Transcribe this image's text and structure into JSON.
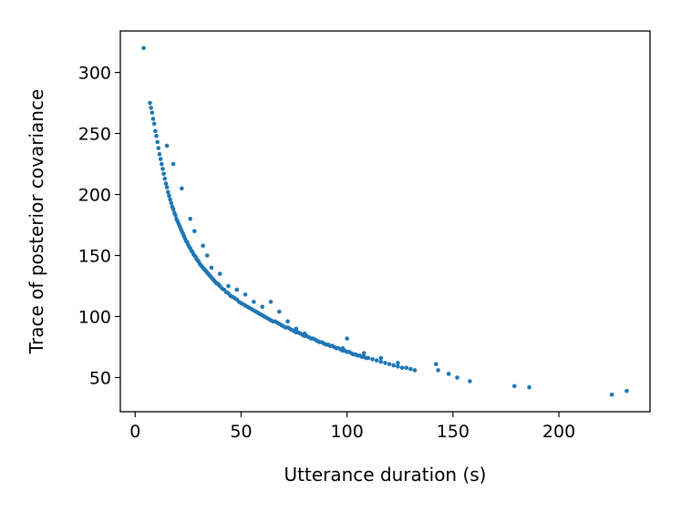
{
  "chart_data": {
    "type": "scatter",
    "title": "",
    "xlabel": "Utterance duration (s)",
    "ylabel": "Trace of posterior covariance",
    "xlim": [
      -7,
      243
    ],
    "ylim": [
      22,
      334
    ],
    "xticks": [
      0,
      50,
      100,
      150,
      200
    ],
    "yticks": [
      50,
      100,
      150,
      200,
      250,
      300
    ],
    "xtick_labels": [
      "0",
      "50",
      "100",
      "150",
      "200"
    ],
    "ytick_labels": [
      "50",
      "100",
      "150",
      "200",
      "250",
      "300"
    ],
    "grid": false,
    "legend": "none",
    "marker_color": "#1f77b4",
    "curve_model": "trace ≈ a·x^(-b) + c fitted through the dense band",
    "series": [
      {
        "x": [
          4,
          7,
          7.5,
          8,
          8.5,
          9,
          9.5,
          10,
          10.5,
          11,
          11.5,
          12,
          12.5,
          13,
          13.5,
          14,
          14.5,
          15,
          15.5,
          16,
          16.5,
          17,
          17.5,
          18,
          18.5,
          19,
          19.5,
          20,
          20.5,
          21,
          21.5,
          22,
          22.5,
          23,
          23.5,
          24,
          24.5,
          25,
          25.5,
          26,
          26.5,
          27,
          27.5,
          28,
          28.5,
          29,
          29.5,
          30,
          30.5,
          31,
          31.5,
          32,
          32.5,
          33,
          33.5,
          34,
          34.5,
          35,
          35.5,
          36,
          36.5,
          37,
          37.5,
          38,
          38.5,
          39,
          39.5,
          40,
          41,
          42,
          43,
          44,
          45,
          46,
          47,
          48,
          49,
          50,
          51,
          52,
          53,
          54,
          55,
          56,
          57,
          58,
          59,
          60,
          61,
          62,
          63,
          64,
          65,
          66,
          67,
          68,
          69,
          70,
          71,
          72,
          73,
          74,
          75,
          76,
          77,
          78,
          79,
          80,
          81,
          82,
          83,
          84,
          85,
          86,
          87,
          88,
          89,
          90,
          91,
          92,
          93,
          94,
          95,
          96,
          97,
          98,
          99,
          100,
          101,
          102,
          103,
          104,
          105,
          106,
          107,
          108,
          109,
          110,
          112,
          114,
          116,
          118,
          120,
          122,
          124,
          126,
          128,
          130,
          142,
          143,
          148,
          152,
          158,
          179,
          186,
          225,
          232,
          15,
          18,
          22,
          26,
          28,
          32,
          34,
          36,
          40,
          44,
          48,
          52,
          56,
          60,
          64,
          68,
          72,
          76,
          80,
          86,
          92,
          98,
          100,
          108,
          116,
          124,
          132
        ],
        "y": [
          320,
          275,
          271,
          267,
          262,
          258,
          252,
          248,
          243,
          238,
          233,
          229,
          225,
          221,
          217,
          213,
          209,
          206,
          202,
          199,
          196,
          193,
          190,
          188,
          185,
          183,
          180,
          178,
          176,
          174,
          172,
          170,
          168,
          166,
          164,
          162,
          161,
          159,
          157,
          156,
          154,
          153,
          151,
          150,
          149,
          147,
          146,
          145,
          143,
          142,
          141,
          140,
          139,
          138,
          137,
          136,
          135,
          134,
          133,
          132,
          131,
          130,
          129,
          128,
          127,
          127,
          126,
          125,
          123,
          122,
          120,
          119,
          117,
          116,
          115,
          114,
          112,
          111,
          110,
          109,
          108,
          107,
          106,
          105,
          104,
          103,
          102,
          101,
          100,
          99,
          98,
          97,
          96,
          96,
          95,
          94,
          93,
          92,
          91,
          91,
          90,
          89,
          88,
          87,
          87,
          86,
          85,
          84,
          84,
          83,
          82,
          82,
          81,
          80,
          79,
          79,
          78,
          77,
          77,
          76,
          76,
          75,
          74,
          74,
          73,
          72,
          72,
          71,
          71,
          70,
          69,
          69,
          68,
          68,
          67,
          67,
          66,
          66,
          65,
          64,
          63,
          62,
          61,
          60,
          59,
          58,
          58,
          57,
          61,
          56,
          53,
          50,
          47,
          43,
          42,
          36,
          39,
          240,
          225,
          205,
          180,
          170,
          158,
          150,
          140,
          135,
          125,
          122,
          118,
          112,
          108,
          112,
          104,
          96,
          90,
          86,
          80,
          76,
          74,
          82,
          70,
          66,
          62,
          56
        ]
      }
    ]
  }
}
